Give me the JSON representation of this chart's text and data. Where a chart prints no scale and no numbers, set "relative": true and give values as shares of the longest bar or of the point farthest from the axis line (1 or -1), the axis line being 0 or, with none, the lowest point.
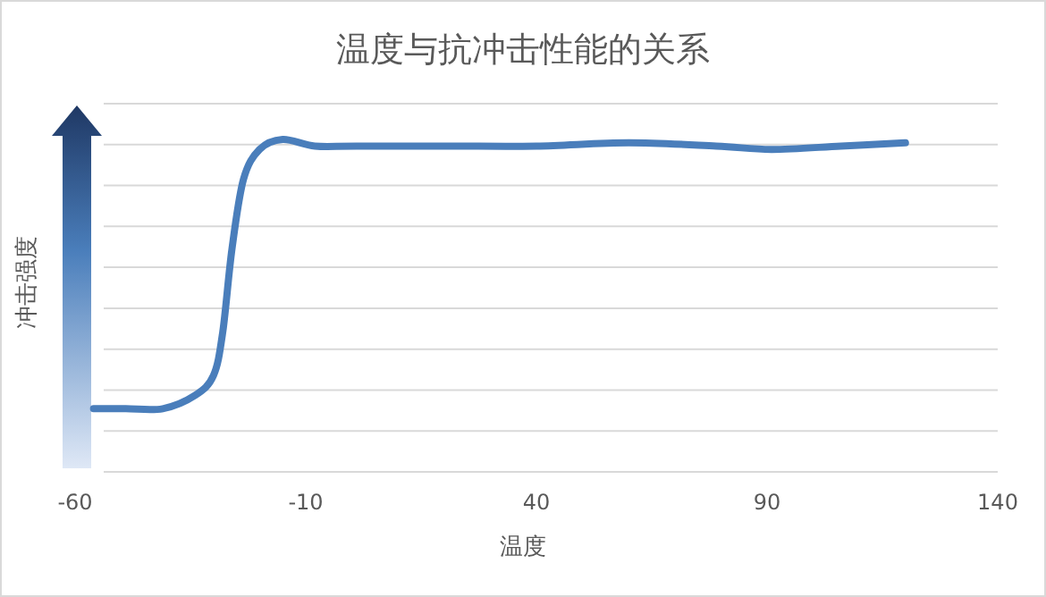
{
  "chart_data": {
    "type": "line",
    "title": "温度与抗冲击性能的关系",
    "xlabel": "温度",
    "ylabel": "冲击强度",
    "relative": true,
    "grid": "y",
    "xlim": [
      -60,
      140
    ],
    "xticks": [
      -60,
      -10,
      40,
      90,
      140
    ],
    "series": [
      {
        "color": "#4a7ebb",
        "x": [
          -56,
          -49,
          -41,
          -34,
          -30,
          -28,
          -26,
          -23.5,
          -20,
          -15,
          -8,
          1,
          21,
          40,
          60,
          79,
          91,
          106,
          120
        ],
        "values": [
          0.19,
          0.19,
          0.19,
          0.23,
          0.29,
          0.42,
          0.67,
          0.88,
          0.97,
          1.0,
          0.98,
          0.98,
          0.98,
          0.98,
          0.99,
          0.98,
          0.97,
          0.98,
          0.99
        ]
      }
    ]
  }
}
